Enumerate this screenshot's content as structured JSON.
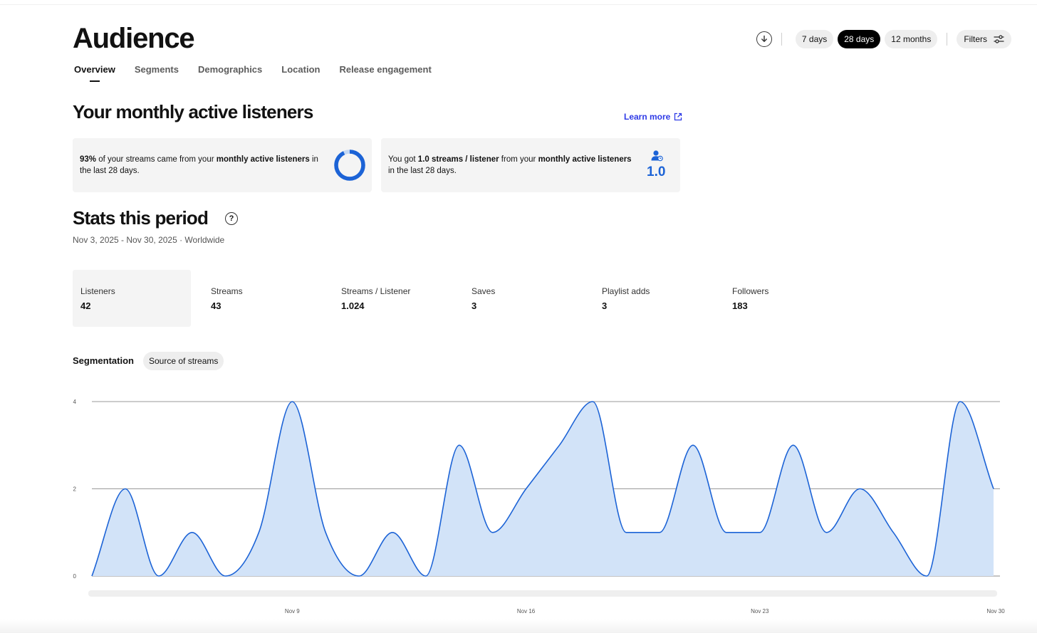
{
  "header": {
    "title": "Audience",
    "tabs": [
      "Overview",
      "Segments",
      "Demographics",
      "Location",
      "Release engagement"
    ],
    "active_tab": "Overview"
  },
  "toolbar": {
    "download_icon": "download-icon",
    "ranges": [
      "7 days",
      "28 days",
      "12 months"
    ],
    "selected_range": "28 days",
    "filters_label": "Filters",
    "filters_icon": "sliders-icon"
  },
  "mal": {
    "heading": "Your monthly active listeners",
    "learn_more": "Learn more",
    "card1": {
      "pct": "93%",
      "t1": " of your streams came from your ",
      "strong": "monthly active listeners",
      "t2": " in the last 28 days.",
      "ring_fraction": 0.93
    },
    "card2": {
      "t1": "You got ",
      "strong1": "1.0 streams / listener",
      "t2": " from your ",
      "strong2": "monthly active listeners",
      "t3": " in the last 28 days.",
      "value": "1.0"
    }
  },
  "stats": {
    "heading": "Stats this period",
    "subtitle": "Nov 3, 2025 - Nov 30, 2025 · Worldwide",
    "items": [
      {
        "label": "Listeners",
        "value": "42"
      },
      {
        "label": "Streams",
        "value": "43"
      },
      {
        "label": "Streams / Listener",
        "value": "1.024"
      },
      {
        "label": "Saves",
        "value": "3"
      },
      {
        "label": "Playlist adds",
        "value": "3"
      },
      {
        "label": "Followers",
        "value": "183"
      }
    ]
  },
  "segmentation": {
    "label": "Segmentation",
    "option": "Source of streams"
  },
  "colors": {
    "accent_blue": "#1c63d6",
    "area_fill": "#d2e3f8",
    "link": "#2e3ae6"
  },
  "chart_data": {
    "type": "area",
    "x": [
      "Nov 3",
      "Nov 4",
      "Nov 5",
      "Nov 6",
      "Nov 7",
      "Nov 8",
      "Nov 9",
      "Nov 10",
      "Nov 11",
      "Nov 12",
      "Nov 13",
      "Nov 14",
      "Nov 15",
      "Nov 16",
      "Nov 17",
      "Nov 18",
      "Nov 19",
      "Nov 20",
      "Nov 21",
      "Nov 22",
      "Nov 23",
      "Nov 24",
      "Nov 25",
      "Nov 26",
      "Nov 27",
      "Nov 28",
      "Nov 29",
      "Nov 30"
    ],
    "values": [
      0,
      2,
      0,
      1,
      0,
      1,
      4,
      1,
      0,
      1,
      0,
      3,
      1,
      2,
      3,
      4,
      1,
      1,
      3,
      1,
      1,
      3,
      1,
      2,
      1,
      0,
      4,
      2
    ],
    "x_ticks": [
      "Nov 9",
      "Nov 16",
      "Nov 23",
      "Nov 30"
    ],
    "y_ticks": [
      0,
      2,
      4
    ],
    "ylim": [
      0,
      4
    ],
    "grid": true,
    "legend": "none"
  }
}
